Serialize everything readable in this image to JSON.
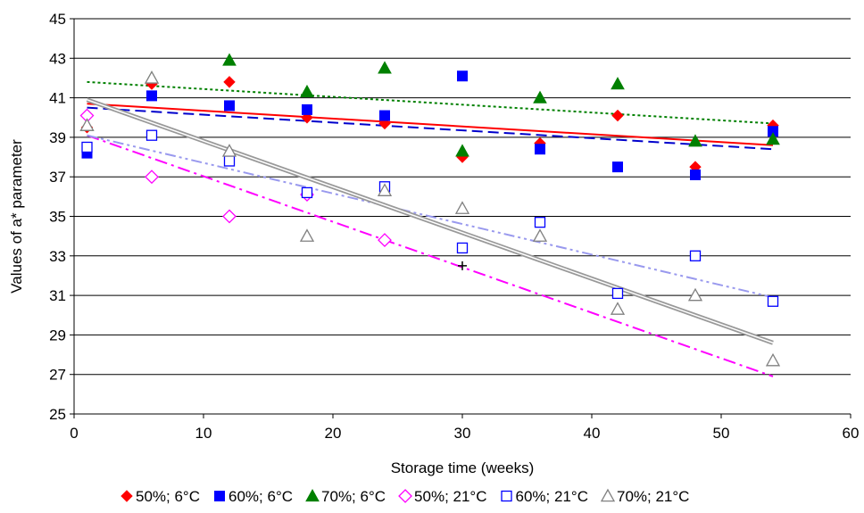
{
  "chart_data": {
    "type": "scatter",
    "title": "",
    "xlabel": "Storage time (weeks)",
    "ylabel": "Values of a* parameter",
    "xlim": [
      0,
      60
    ],
    "ylim": [
      25,
      45
    ],
    "x_ticks": [
      0,
      10,
      20,
      30,
      40,
      50,
      60
    ],
    "y_ticks": [
      25,
      27,
      29,
      31,
      33,
      35,
      37,
      39,
      41,
      43,
      45
    ],
    "grid": "horizontal",
    "legend_position": "bottom",
    "series": [
      {
        "name": "50%; 6°C",
        "marker": "diamond-filled",
        "color": "#ff0000",
        "points": [
          [
            1,
            39.5
          ],
          [
            6,
            41.7
          ],
          [
            12,
            41.8
          ],
          [
            18,
            40.0
          ],
          [
            24,
            39.7
          ],
          [
            30,
            38.0
          ],
          [
            36,
            38.7
          ],
          [
            42,
            40.1
          ],
          [
            48,
            37.5
          ],
          [
            54,
            39.6
          ]
        ],
        "trendline": {
          "style": "solid",
          "color": "#ff0000",
          "from": [
            1,
            40.7
          ],
          "to": [
            54,
            38.6
          ]
        }
      },
      {
        "name": "60%; 6°C",
        "marker": "square-filled",
        "color": "#0000ff",
        "points": [
          [
            1,
            38.2
          ],
          [
            6,
            41.1
          ],
          [
            12,
            40.6
          ],
          [
            18,
            40.4
          ],
          [
            24,
            40.1
          ],
          [
            30,
            42.1
          ],
          [
            36,
            38.4
          ],
          [
            42,
            37.5
          ],
          [
            48,
            37.1
          ],
          [
            54,
            39.3
          ]
        ],
        "trendline": {
          "style": "dashed",
          "color": "#0000cc",
          "from": [
            1,
            40.5
          ],
          "to": [
            54,
            38.4
          ]
        }
      },
      {
        "name": "70%; 6°C",
        "marker": "triangle-filled",
        "color": "#008000",
        "points": [
          [
            1,
            39.6
          ],
          [
            6,
            42.0
          ],
          [
            12,
            42.9
          ],
          [
            18,
            41.3
          ],
          [
            24,
            42.5
          ],
          [
            30,
            38.3
          ],
          [
            36,
            41.0
          ],
          [
            42,
            41.7
          ],
          [
            48,
            38.8
          ],
          [
            54,
            38.9
          ]
        ],
        "trendline": {
          "style": "dotted",
          "color": "#008000",
          "from": [
            1,
            41.8
          ],
          "to": [
            54,
            39.7
          ]
        }
      },
      {
        "name": "50%; 21°C",
        "marker": "diamond-open",
        "color": "#ff00ff",
        "points": [
          [
            1,
            40.1
          ],
          [
            6,
            37.0
          ],
          [
            12,
            35.0
          ],
          [
            18,
            36.1
          ],
          [
            24,
            33.8
          ]
        ],
        "trendline": {
          "style": "dash-dot",
          "color": "#ff00ff",
          "from": [
            1,
            39.1
          ],
          "to": [
            54,
            26.9
          ]
        }
      },
      {
        "name": "60%; 21°C",
        "marker": "square-open",
        "color": "#0000ff",
        "points": [
          [
            1,
            38.5
          ],
          [
            6,
            39.1
          ],
          [
            12,
            37.8
          ],
          [
            18,
            36.2
          ],
          [
            24,
            36.5
          ],
          [
            30,
            33.4
          ],
          [
            36,
            34.7
          ],
          [
            42,
            31.1
          ],
          [
            48,
            33.0
          ],
          [
            54,
            30.7
          ]
        ],
        "trendline": {
          "style": "dash-dot-dot",
          "color": "#9999ee",
          "from": [
            1,
            39.1
          ],
          "to": [
            54,
            30.9
          ]
        }
      },
      {
        "name": "70%; 21°C",
        "marker": "triangle-open",
        "color": "#808080",
        "points": [
          [
            1,
            39.6
          ],
          [
            6,
            42.0
          ],
          [
            12,
            38.3
          ],
          [
            18,
            34.0
          ],
          [
            24,
            36.3
          ],
          [
            30,
            35.4
          ],
          [
            36,
            34.0
          ],
          [
            42,
            30.3
          ],
          [
            48,
            31.0
          ],
          [
            54,
            27.7
          ]
        ],
        "trendline": {
          "style": "double",
          "color": "#999999",
          "from": [
            1,
            40.9
          ],
          "to": [
            54,
            28.6
          ]
        }
      }
    ],
    "extra_markers": [
      {
        "shape": "cross",
        "color": "#000000",
        "point": [
          30,
          32.5
        ]
      }
    ]
  }
}
